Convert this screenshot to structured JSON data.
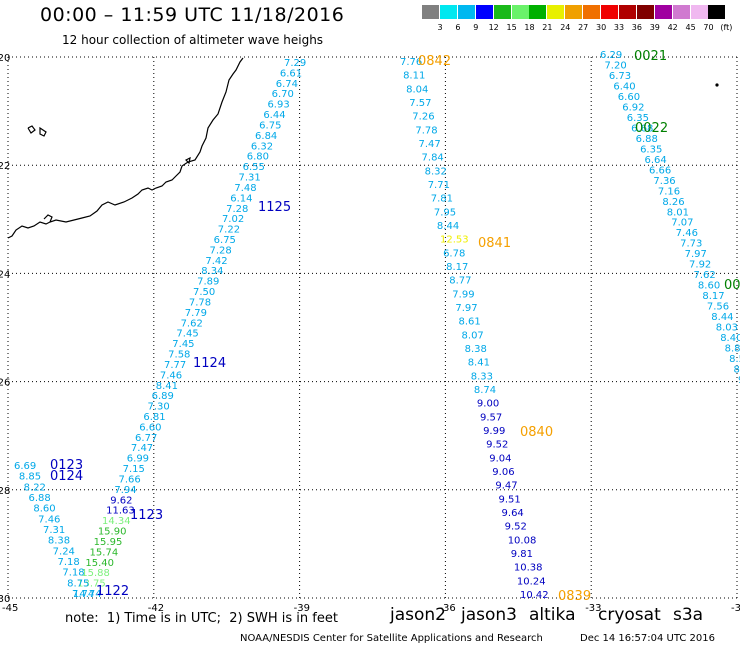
{
  "title": "00:00 – 11:59 UTC 11/18/2016",
  "subtitle": "12 hour collection of altimeter wave heighs",
  "note": "note:  1) Time is in UTC;  2) SWH is in feet",
  "satellites": [
    {
      "name": "jason2",
      "color": "#1a1ad0"
    },
    {
      "name": "jason3",
      "color": "#16a016"
    },
    {
      "name": "altika",
      "color": "#f5a000"
    },
    {
      "name": "cryosat",
      "color": "#e00000"
    },
    {
      "name": "s3a",
      "color": "#a01010"
    }
  ],
  "footer": {
    "center": "NOAA/NESDIS Center for Satellite Applications and Research",
    "right": "Dec 14 16:57:04 UTC 2016"
  },
  "colorbar": {
    "unit": "(ft)",
    "labels": [
      "3",
      "6",
      "9",
      "12",
      "15",
      "18",
      "21",
      "24",
      "27",
      "30",
      "33",
      "36",
      "39",
      "42",
      "45",
      "70"
    ],
    "colors": [
      "#808080",
      "#00e8f0",
      "#00b8f0",
      "#0000ff",
      "#1ab91a",
      "#6af26a",
      "#00b000",
      "#e8f000",
      "#f0a000",
      "#f07000",
      "#f00000",
      "#b00000",
      "#800000",
      "#a000a0",
      "#d07ad0",
      "#f0b8f0",
      "#000000"
    ]
  },
  "axes": {
    "lon_labels": [
      "-45",
      "-42",
      "-39",
      "-36",
      "-33",
      "-30"
    ],
    "lat_labels": [
      "-20",
      "-22",
      "-24",
      "-26",
      "-28",
      "-30"
    ],
    "lon_range": [
      -45,
      -30
    ],
    "lat_range": [
      -30,
      -20
    ],
    "grid": true
  },
  "passes": [
    {
      "id": "p1122",
      "time_label": "1122",
      "time_color": "#0000c0",
      "values": [
        "7.29",
        "6.61",
        "6.74",
        "6.70",
        "6.93",
        "6.44",
        "6.75",
        "6.84",
        "6.32",
        "6.80",
        "6.55",
        "7.31",
        "7.48",
        "6.14",
        "7.28",
        "7.02",
        "7.22",
        "6.75",
        "7.28",
        "7.42",
        "8.34",
        "7.89",
        "7.50",
        "7.78",
        "7.79",
        "7.62",
        "7.45",
        "7.45",
        "7.58",
        "7.77",
        "7.46",
        "8.41",
        "6.89",
        "7.30",
        "6.81",
        "6.60",
        "6.77",
        "7.47",
        "6.99",
        "7.15",
        "7.66",
        "7.94",
        "9.62",
        "11.63",
        "14.34",
        "15.90",
        "15.95",
        "15.74",
        "15.40",
        "15.88",
        "13.75",
        "14.74"
      ],
      "colors": [
        "c",
        "c",
        "c",
        "c",
        "c",
        "c",
        "c",
        "c",
        "c",
        "c",
        "c",
        "c",
        "c",
        "c",
        "c",
        "c",
        "c",
        "c",
        "c",
        "c",
        "c",
        "c",
        "c",
        "c",
        "c",
        "c",
        "c",
        "c",
        "c",
        "c",
        "c",
        "c",
        "c",
        "c",
        "c",
        "c",
        "c",
        "c",
        "c",
        "c",
        "c",
        "c",
        "b",
        "b",
        "lg",
        "g",
        "g",
        "g",
        "g",
        "lg",
        "lg",
        "c"
      ]
    },
    {
      "id": "p0124",
      "time_label": "0124",
      "time_color": "#0000c0",
      "values": [
        "6.69",
        "8.85",
        "8.22",
        "6.88",
        "8.60",
        "7.46",
        "7.31",
        "8.38",
        "7.24",
        "7.18",
        "7.18",
        "8.75",
        "7.74"
      ],
      "colors": [
        "c",
        "c",
        "c",
        "c",
        "c",
        "c",
        "c",
        "c",
        "c",
        "c",
        "c",
        "c",
        "c"
      ]
    },
    {
      "id": "p0839",
      "time_label": "0842",
      "time_color": "#f5a000",
      "values": [
        "7.76",
        "8.11",
        "8.04",
        "7.57",
        "7.26",
        "7.78",
        "7.47",
        "7.84",
        "8.32",
        "7.71",
        "7.81",
        "7.95",
        "8.44",
        "12.53",
        "6.78",
        "8.17",
        "8.77",
        "7.99",
        "7.97",
        "8.61",
        "8.07",
        "8.38",
        "8.41",
        "8.33",
        "8.74",
        "9.00",
        "9.57",
        "9.99",
        "9.52",
        "9.04",
        "9.06",
        "9.47",
        "9.51",
        "9.64",
        "9.52",
        "10.08",
        "9.81",
        "10.38",
        "10.24",
        "10.42"
      ],
      "colors": [
        "c",
        "c",
        "c",
        "c",
        "c",
        "c",
        "c",
        "c",
        "c",
        "c",
        "c",
        "c",
        "c",
        "y",
        "c",
        "c",
        "c",
        "c",
        "c",
        "c",
        "c",
        "c",
        "c",
        "c",
        "c",
        "b",
        "b",
        "b",
        "b",
        "b",
        "b",
        "b",
        "b",
        "b",
        "b",
        "b",
        "b",
        "b",
        "b",
        "b"
      ]
    },
    {
      "id": "p0021",
      "time_label": "0021",
      "time_color": "#008000",
      "values": [
        "6.29",
        "7.20",
        "6.73",
        "6.40",
        "6.60",
        "6.92",
        "6.35",
        "6.68",
        "6.88",
        "6.35",
        "6.64",
        "6.66",
        "7.36",
        "7.16",
        "8.26",
        "8.01",
        "7.07",
        "7.46",
        "7.73",
        "7.97",
        "7.92",
        "7.62",
        "8.60",
        "8.17",
        "7.56",
        "8.44",
        "8.03",
        "8.40",
        "8.89",
        "8.59",
        "8.8",
        "9."
      ],
      "colors": [
        "c",
        "c",
        "c",
        "c",
        "c",
        "c",
        "c",
        "c",
        "c",
        "c",
        "c",
        "c",
        "c",
        "c",
        "c",
        "c",
        "c",
        "c",
        "c",
        "c",
        "c",
        "c",
        "c",
        "c",
        "c",
        "c",
        "c",
        "c",
        "c",
        "c",
        "c",
        "c"
      ]
    }
  ],
  "time_labels": [
    {
      "text": "1125",
      "color": "#0000c0"
    },
    {
      "text": "1124",
      "color": "#0000c0"
    },
    {
      "text": "1123",
      "color": "#0000c0"
    },
    {
      "text": "1122",
      "color": "#0000c0"
    },
    {
      "text": "0123",
      "color": "#0000c0"
    },
    {
      "text": "0124",
      "color": "#0000c0"
    },
    {
      "text": "0842",
      "color": "#f5a000"
    },
    {
      "text": "0841",
      "color": "#f5a000"
    },
    {
      "text": "0840",
      "color": "#f5a000"
    },
    {
      "text": "0839",
      "color": "#f5a000"
    },
    {
      "text": "0021",
      "color": "#008000"
    },
    {
      "text": "0022",
      "color": "#008000"
    },
    {
      "text": "00",
      "color": "#008000"
    }
  ],
  "marker_colors": {
    "c": "#00a8e8",
    "b": "#0000c0",
    "g": "#2cb82c",
    "lg": "#7cf07c",
    "y": "#f0f000"
  }
}
